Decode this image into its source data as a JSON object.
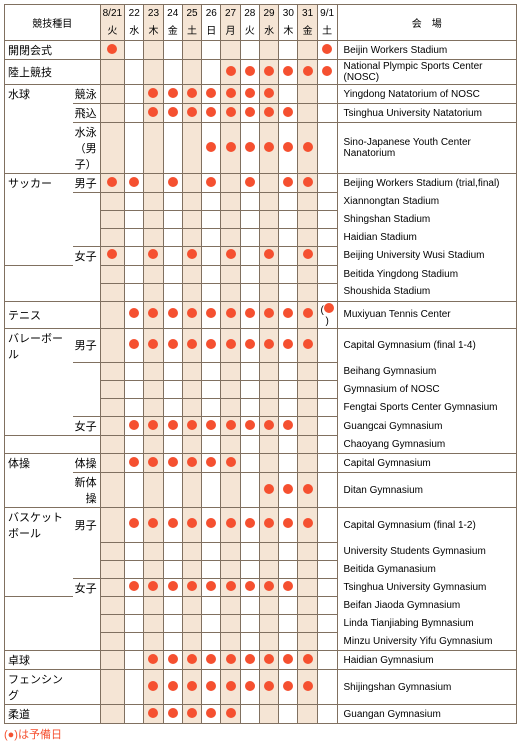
{
  "headers": {
    "event": "競技種目",
    "venue": "会　場"
  },
  "dates": [
    "8/21",
    "22",
    "23",
    "24",
    "25",
    "26",
    "27",
    "28",
    "29",
    "30",
    "31",
    "9/1"
  ],
  "days": [
    "火",
    "水",
    "木",
    "金",
    "土",
    "日",
    "月",
    "火",
    "水",
    "木",
    "金",
    "土"
  ],
  "altCols": [
    0,
    2,
    4,
    6,
    8,
    10
  ],
  "footnote": "(●)は予備日",
  "colors": {
    "dot": "#f55030",
    "border": "#807060",
    "alt": "#f5e5d5"
  },
  "rows": [
    {
      "label": "開閉会式",
      "sub": "",
      "marks": [
        1,
        0,
        0,
        0,
        0,
        0,
        0,
        0,
        0,
        0,
        0,
        1
      ],
      "venue": "Beijin Workers Stadium"
    },
    {
      "label": "陸上競技",
      "sub": "",
      "marks": [
        0,
        0,
        0,
        0,
        0,
        0,
        1,
        1,
        1,
        1,
        1,
        1
      ],
      "venue": "National Plympic Sports Center (NOSC)"
    },
    {
      "label": "水球",
      "sub": "競泳",
      "marks": [
        0,
        0,
        1,
        1,
        1,
        1,
        1,
        1,
        1,
        0,
        0,
        0
      ],
      "venue": "Yingdong Natatorium of NOSC",
      "lb": "nb-b"
    },
    {
      "label": "",
      "sub": "飛込",
      "marks": [
        0,
        0,
        1,
        1,
        1,
        1,
        1,
        1,
        1,
        1,
        0,
        0
      ],
      "venue": "Tsinghua University Natatorium",
      "lb": "nb-t nb-b"
    },
    {
      "label": "",
      "sub": "水泳（男子）",
      "marks": [
        0,
        0,
        0,
        0,
        0,
        1,
        1,
        1,
        1,
        1,
        1,
        0
      ],
      "venue": "Sino-Japanese Youth Center Nanatorium",
      "lb": "nb-t"
    },
    {
      "label": "サッカー",
      "sub": "男子",
      "marks": [
        1,
        1,
        0,
        1,
        0,
        1,
        0,
        1,
        0,
        1,
        1,
        0
      ],
      "venue": "Beijing Workers Stadium (trial,final)",
      "lb": "nb-b",
      "vb": "nb-b"
    },
    {
      "label": "",
      "sub": "",
      "marks": [
        0,
        0,
        0,
        0,
        0,
        0,
        0,
        0,
        0,
        0,
        0,
        0
      ],
      "venue": "Xiannongtan Stadium",
      "lb": "nb-t nb-b",
      "sb": "nb-t nb-b",
      "vb": "nb-t nb-b"
    },
    {
      "label": "",
      "sub": "",
      "marks": [
        0,
        0,
        0,
        0,
        0,
        0,
        0,
        0,
        0,
        0,
        0,
        0
      ],
      "venue": "Shingshan Stadium",
      "lb": "nb-t nb-b",
      "sb": "nb-t nb-b",
      "vb": "nb-t nb-b"
    },
    {
      "label": "",
      "sub": "",
      "marks": [
        0,
        0,
        0,
        0,
        0,
        0,
        0,
        0,
        0,
        0,
        0,
        0
      ],
      "venue": "Haidian Stadium",
      "lb": "nb-t nb-b",
      "sb": "nb-t",
      "vb": "nb-t nb-b"
    },
    {
      "label": "",
      "sub": "女子",
      "marks": [
        1,
        0,
        1,
        0,
        1,
        0,
        1,
        0,
        1,
        0,
        1,
        0
      ],
      "venue": "Beijing University Wusi Stadium",
      "lb": "nb-t",
      "sb": "nb-b",
      "vb": "nb-t nb-b"
    },
    {
      "label": "",
      "sub": "",
      "marks": [
        0,
        0,
        0,
        0,
        0,
        0,
        0,
        0,
        0,
        0,
        0,
        0
      ],
      "venue": "Beitida Yingdong Stadium",
      "lb": "nb-t nb-b",
      "sb": "nb-t nb-b",
      "vb": "nb-t nb-b"
    },
    {
      "label": "",
      "sub": "",
      "marks": [
        0,
        0,
        0,
        0,
        0,
        0,
        0,
        0,
        0,
        0,
        0,
        0
      ],
      "venue": "Shoushida Stadium",
      "lb": "nb-t",
      "sb": "nb-t",
      "vb": "nb-t"
    },
    {
      "label": "テニス",
      "sub": "",
      "marks": [
        0,
        1,
        1,
        1,
        1,
        1,
        1,
        1,
        1,
        1,
        1,
        2
      ],
      "venue": "Muxiyuan Tennis Center"
    },
    {
      "label": "バレーボール",
      "sub": "男子",
      "marks": [
        0,
        1,
        1,
        1,
        1,
        1,
        1,
        1,
        1,
        1,
        1,
        0
      ],
      "venue": "Capital Gymnasium (final 1-4)",
      "lb": "nb-b",
      "vb": "nb-b"
    },
    {
      "label": "",
      "sub": "",
      "marks": [
        0,
        0,
        0,
        0,
        0,
        0,
        0,
        0,
        0,
        0,
        0,
        0
      ],
      "venue": "Beihang Gymnasium",
      "lb": "nb-t nb-b",
      "sb": "nb-t nb-b",
      "vb": "nb-t nb-b"
    },
    {
      "label": "",
      "sub": "",
      "marks": [
        0,
        0,
        0,
        0,
        0,
        0,
        0,
        0,
        0,
        0,
        0,
        0
      ],
      "venue": "Gymnasium of NOSC",
      "lb": "nb-t nb-b",
      "sb": "nb-t nb-b",
      "vb": "nb-t nb-b"
    },
    {
      "label": "",
      "sub": "",
      "marks": [
        0,
        0,
        0,
        0,
        0,
        0,
        0,
        0,
        0,
        0,
        0,
        0
      ],
      "venue": "Fengtai Sports Center Gymnasium",
      "lb": "nb-t nb-b",
      "sb": "nb-t",
      "vb": "nb-t nb-b"
    },
    {
      "label": "",
      "sub": "女子",
      "marks": [
        0,
        1,
        1,
        1,
        1,
        1,
        1,
        1,
        1,
        1,
        0,
        0
      ],
      "venue": "Guangcai Gymnasium",
      "lb": "nb-t",
      "vb": "nb-t nb-b"
    },
    {
      "label": "",
      "sub": "",
      "marks": [
        0,
        0,
        0,
        0,
        0,
        0,
        0,
        0,
        0,
        0,
        0,
        0
      ],
      "venue": "Chaoyang Gymnasium",
      "lb": "nb-t",
      "sb": "nb-t",
      "vb": "nb-t"
    },
    {
      "label": "体操",
      "sub": "体操",
      "marks": [
        0,
        1,
        1,
        1,
        1,
        1,
        1,
        0,
        0,
        0,
        0,
        0
      ],
      "venue": "Capital Gymnasium",
      "lb": "nb-b"
    },
    {
      "label": "",
      "sub": "新体操",
      "marks": [
        0,
        0,
        0,
        0,
        0,
        0,
        0,
        0,
        1,
        1,
        1,
        0
      ],
      "venue": "Ditan Gymnasium",
      "lb": "nb-t"
    },
    {
      "label": "バスケットボール",
      "sub": "男子",
      "marks": [
        0,
        1,
        1,
        1,
        1,
        1,
        1,
        1,
        1,
        1,
        1,
        0
      ],
      "venue": "Capital Gymnasium (final 1-2)",
      "lb": "nb-b",
      "vb": "nb-b",
      "sb": "nb-b",
      "small": true
    },
    {
      "label": "",
      "sub": "",
      "marks": [
        0,
        0,
        0,
        0,
        0,
        0,
        0,
        0,
        0,
        0,
        0,
        0
      ],
      "venue": "University Students Gymnasium",
      "lb": "nb-t nb-b",
      "sb": "nb-t nb-b",
      "vb": "nb-t nb-b"
    },
    {
      "label": "",
      "sub": "",
      "marks": [
        0,
        0,
        0,
        0,
        0,
        0,
        0,
        0,
        0,
        0,
        0,
        0
      ],
      "venue": "Beitida Gymanasium",
      "lb": "nb-t nb-b",
      "sb": "nb-t",
      "vb": "nb-t nb-b"
    },
    {
      "label": "",
      "sub": "女子",
      "marks": [
        0,
        1,
        1,
        1,
        1,
        1,
        1,
        1,
        1,
        1,
        0,
        0
      ],
      "venue": "Tsinghua University Gymnasium",
      "lb": "nb-t",
      "sb": "nb-b",
      "vb": "nb-t nb-b"
    },
    {
      "label": "",
      "sub": "",
      "marks": [
        0,
        0,
        0,
        0,
        0,
        0,
        0,
        0,
        0,
        0,
        0,
        0
      ],
      "venue": "Beifan Jiaoda Gymnasium",
      "lb": "nb-t nb-b",
      "sb": "nb-t nb-b",
      "vb": "nb-t nb-b"
    },
    {
      "label": "",
      "sub": "",
      "marks": [
        0,
        0,
        0,
        0,
        0,
        0,
        0,
        0,
        0,
        0,
        0,
        0
      ],
      "venue": "Linda Tianjiabing Bymnasium",
      "lb": "nb-t nb-b",
      "sb": "nb-t nb-b",
      "vb": "nb-t nb-b"
    },
    {
      "label": "",
      "sub": "",
      "marks": [
        0,
        0,
        0,
        0,
        0,
        0,
        0,
        0,
        0,
        0,
        0,
        0
      ],
      "venue": "Minzu University Yifu Gymnasium",
      "lb": "nb-t",
      "sb": "nb-t",
      "vb": "nb-t"
    },
    {
      "label": "卓球",
      "sub": "",
      "marks": [
        0,
        0,
        1,
        1,
        1,
        1,
        1,
        1,
        1,
        1,
        1,
        0
      ],
      "venue": "Haidian Gymnasium"
    },
    {
      "label": "フェンシング",
      "sub": "",
      "marks": [
        0,
        0,
        1,
        1,
        1,
        1,
        1,
        1,
        1,
        1,
        1,
        0
      ],
      "venue": "Shijingshan Gymnasium"
    },
    {
      "label": "柔道",
      "sub": "",
      "marks": [
        0,
        0,
        1,
        1,
        1,
        1,
        1,
        0,
        0,
        0,
        0,
        0
      ],
      "venue": "Guangan Gymnasium"
    }
  ]
}
